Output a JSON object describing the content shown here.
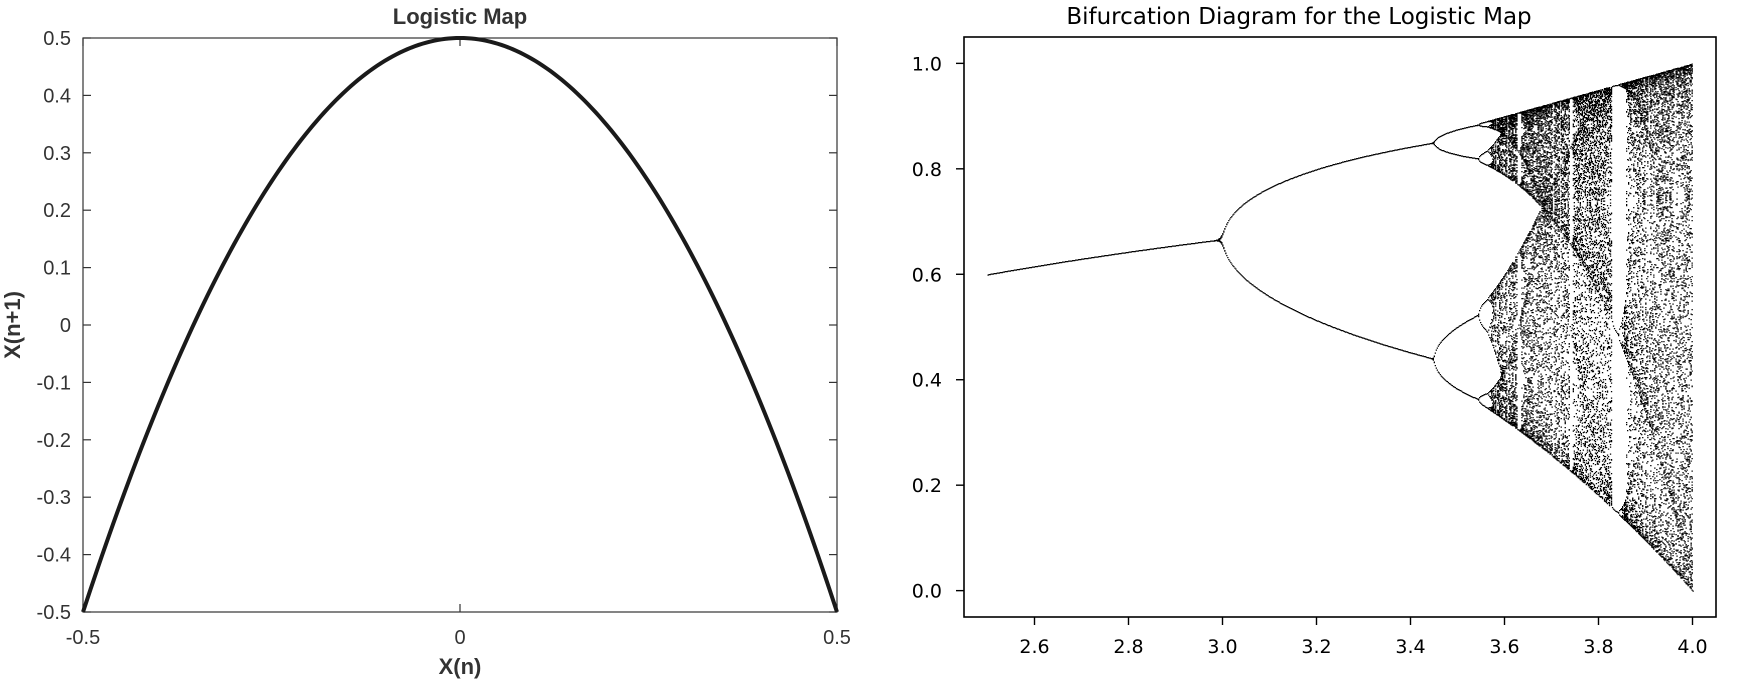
{
  "chart_data": [
    {
      "type": "line",
      "title": "Logistic Map",
      "xlabel": "X(n)",
      "ylabel": "X(n+1)",
      "xlim": [
        -0.5,
        0.5
      ],
      "ylim": [
        -0.5,
        0.5
      ],
      "x_ticks": [
        "-0.5",
        "0",
        "0.5"
      ],
      "y_ticks": [
        "0.5",
        "0.4",
        "0.3",
        "0.2",
        "0.1",
        "0",
        "-0.1",
        "-0.2",
        "-0.3",
        "-0.4",
        "-0.5"
      ],
      "x_tick_values": [
        -0.5,
        0,
        0.5
      ],
      "y_tick_values": [
        0.5,
        0.4,
        0.3,
        0.2,
        0.1,
        0,
        -0.1,
        -0.2,
        -0.3,
        -0.4,
        -0.5
      ],
      "series": [
        {
          "x": [
            -0.5,
            -0.4,
            -0.3,
            -0.2,
            -0.1,
            0,
            0.1,
            0.2,
            0.3,
            0.4,
            0.5
          ],
          "y": [
            -0.5,
            -0.14,
            0.14,
            0.34,
            0.46,
            0.5,
            0.46,
            0.34,
            0.14,
            -0.14,
            -0.5
          ],
          "color": "#1a1a1a"
        }
      ],
      "grid": false
    },
    {
      "type": "scatter",
      "title": "Bifurcation Diagram for the Logistic Map",
      "xlabel": "",
      "ylabel": "",
      "xlim": [
        2.45,
        4.05
      ],
      "ylim": [
        -0.05,
        1.05
      ],
      "x_ticks": [
        "2.6",
        "2.8",
        "3.0",
        "3.2",
        "3.4",
        "3.6",
        "3.8",
        "4.0"
      ],
      "y_ticks": [
        "1.0",
        "0.8",
        "0.6",
        "0.4",
        "0.2",
        "0.0"
      ],
      "x_tick_values": [
        2.6,
        2.8,
        3.0,
        3.2,
        3.4,
        3.6,
        3.8,
        4.0
      ],
      "y_tick_values": [
        1.0,
        0.8,
        0.6,
        0.4,
        0.2,
        0.0
      ],
      "r_range": [
        2.5,
        4.0
      ],
      "grid": false,
      "marker_color": "#000000"
    }
  ]
}
